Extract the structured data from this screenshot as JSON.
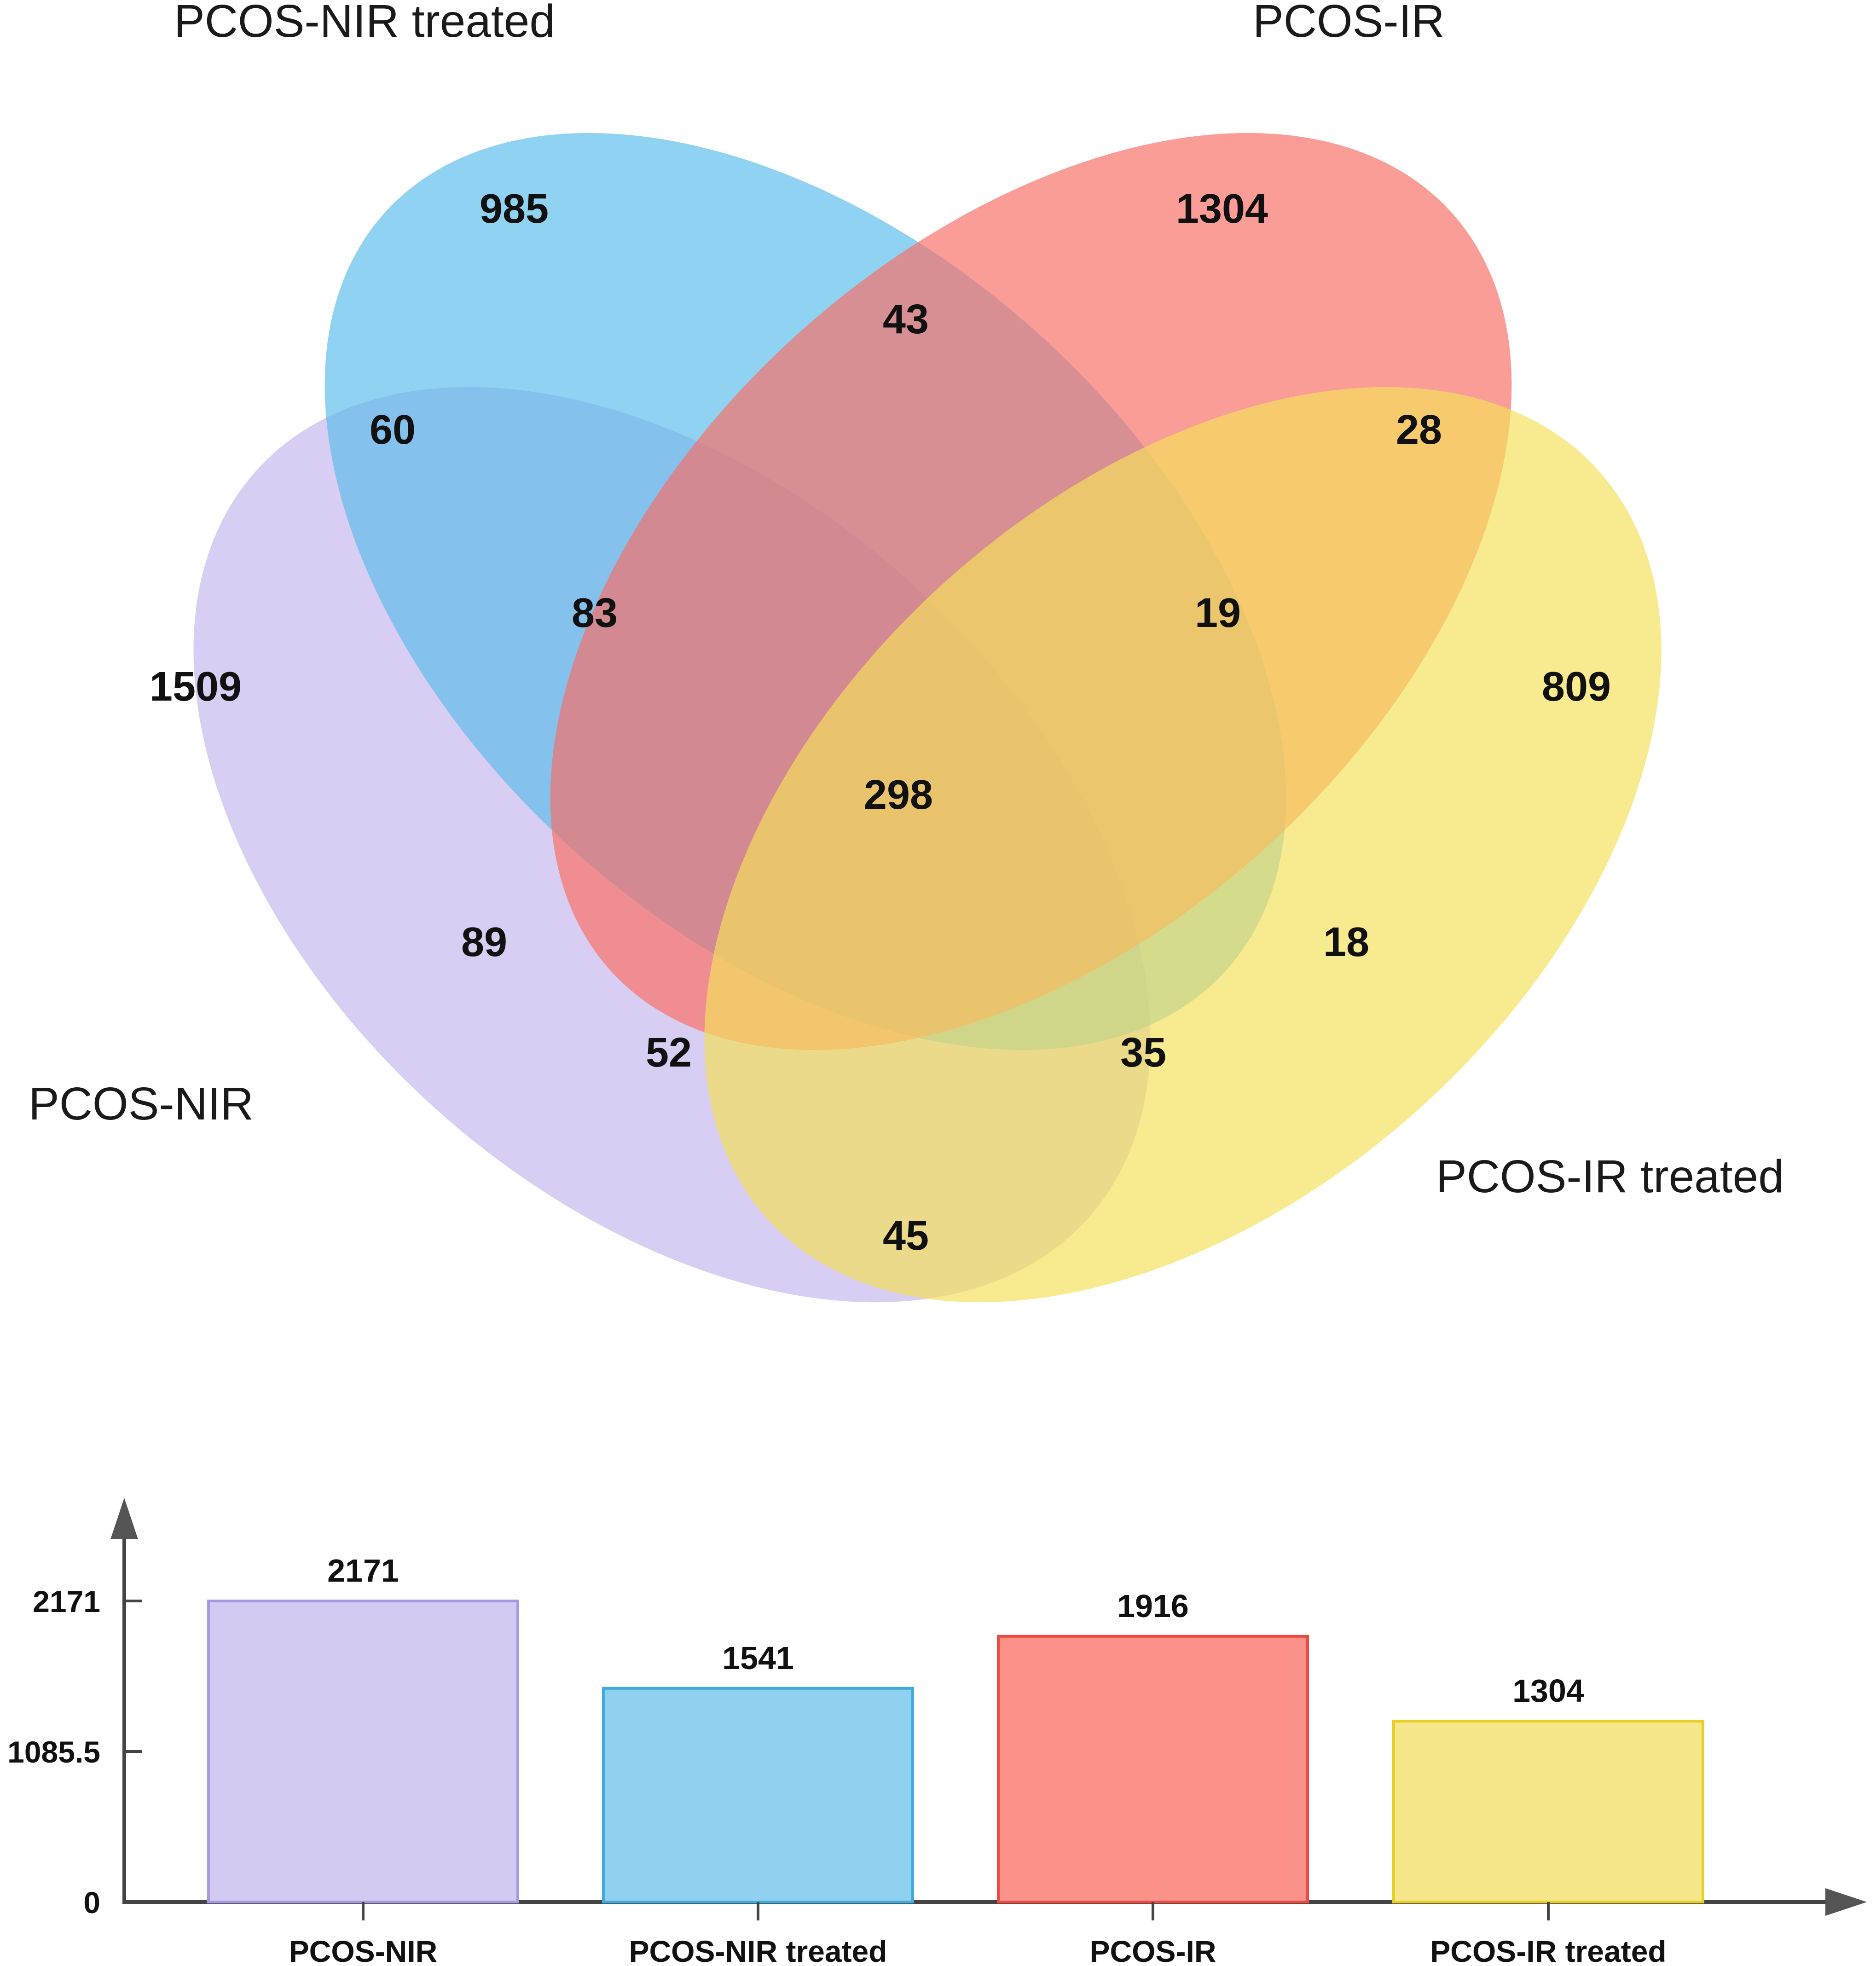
{
  "chart_data": [
    {
      "type": "venn",
      "sets": [
        {
          "key": "nir",
          "label": "PCOS-NIR",
          "color": "#c6b6ee"
        },
        {
          "key": "nirt",
          "label": "PCOS-NIR treated",
          "color": "#5cbceb"
        },
        {
          "key": "ir",
          "label": "PCOS-IR",
          "color": "#f96f66"
        },
        {
          "key": "irt",
          "label": "PCOS-IR treated",
          "color": "#f5e05a"
        }
      ],
      "regions": [
        {
          "sets": [
            "nir"
          ],
          "value": 1509
        },
        {
          "sets": [
            "nirt"
          ],
          "value": 985
        },
        {
          "sets": [
            "ir"
          ],
          "value": 1304
        },
        {
          "sets": [
            "irt"
          ],
          "value": 809
        },
        {
          "sets": [
            "nirt",
            "ir"
          ],
          "value": 43
        },
        {
          "sets": [
            "nir",
            "nirt"
          ],
          "value": 60
        },
        {
          "sets": [
            "ir",
            "irt"
          ],
          "value": 28
        },
        {
          "sets": [
            "nir",
            "nirt",
            "ir"
          ],
          "value": 83
        },
        {
          "sets": [
            "nirt",
            "ir",
            "irt"
          ],
          "value": 19
        },
        {
          "sets": [
            "nir",
            "nirt",
            "ir",
            "irt"
          ],
          "value": 298
        },
        {
          "sets": [
            "nir",
            "ir"
          ],
          "value": 89
        },
        {
          "sets": [
            "nirt",
            "irt"
          ],
          "value": 18
        },
        {
          "sets": [
            "nir",
            "ir",
            "irt"
          ],
          "value": 52
        },
        {
          "sets": [
            "nir",
            "nirt",
            "irt"
          ],
          "value": 35
        },
        {
          "sets": [
            "nir",
            "irt"
          ],
          "value": 45
        }
      ]
    },
    {
      "type": "bar",
      "categories": [
        "PCOS-NIR",
        "PCOS-NIR treated",
        "PCOS-IR",
        "PCOS-IR treated"
      ],
      "values": [
        2171,
        1541,
        1916,
        1304
      ],
      "value_labels": [
        "2171",
        "1541",
        "1916",
        "1304"
      ],
      "colors": [
        {
          "fill": "#d3c9f1",
          "stroke": "#a799e0"
        },
        {
          "fill": "#8fd1ef",
          "stroke": "#3fabdf"
        },
        {
          "fill": "#fb928a",
          "stroke": "#ec4a42"
        },
        {
          "fill": "#f6e88a",
          "stroke": "#e6cf28"
        }
      ],
      "yticks": [
        "0",
        "1085.5",
        "2171"
      ],
      "ytick_values": [
        0,
        1085.5,
        2171
      ],
      "ylim": [
        0,
        2171
      ],
      "xlabel": "",
      "ylabel": ""
    }
  ]
}
